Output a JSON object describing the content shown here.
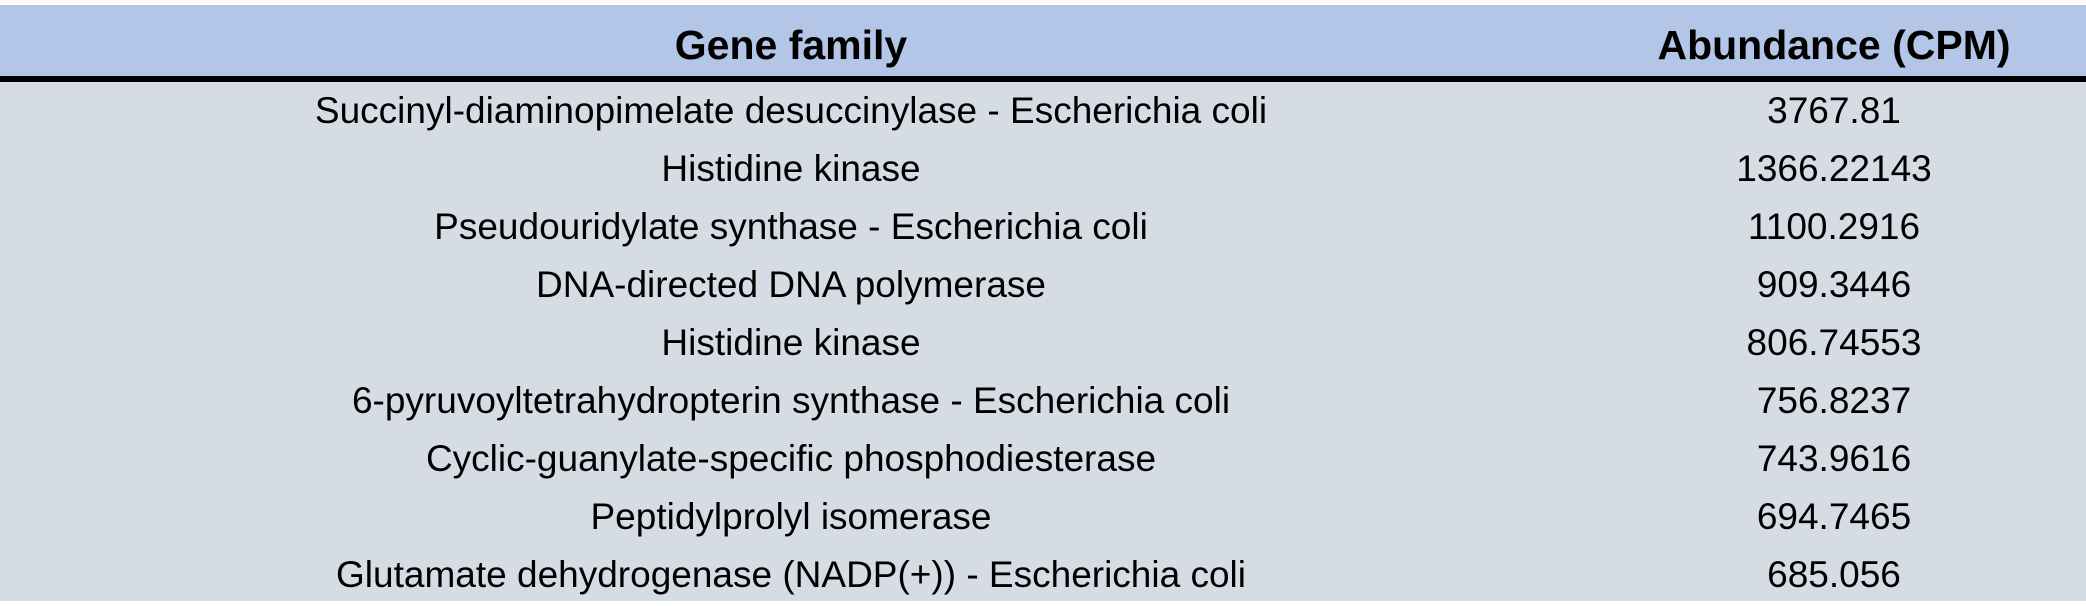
{
  "table": {
    "headers": {
      "gene_family": "Gene family",
      "abundance": "Abundance (CPM)"
    },
    "rows": [
      {
        "gene_family": "Succinyl-diaminopimelate desuccinylase - Escherichia coli",
        "abundance": "3767.81"
      },
      {
        "gene_family": "Histidine kinase",
        "abundance": "1366.22143"
      },
      {
        "gene_family": "Pseudouridylate synthase - Escherichia coli",
        "abundance": "1100.2916"
      },
      {
        "gene_family": "DNA-directed DNA polymerase",
        "abundance": "909.3446"
      },
      {
        "gene_family": "Histidine kinase",
        "abundance": "806.74553"
      },
      {
        "gene_family": "6-pyruvoyltetrahydropterin synthase - Escherichia coli",
        "abundance": "756.8237"
      },
      {
        "gene_family": "Cyclic-guanylate-specific phosphodiesterase",
        "abundance": "743.9616"
      },
      {
        "gene_family": "Peptidylprolyl isomerase",
        "abundance": "694.7465"
      },
      {
        "gene_family": "Glutamate dehydrogenase (NADP(+)) - Escherichia coli",
        "abundance": "685.056"
      }
    ]
  },
  "colors": {
    "header_bg": "#b4c6e7",
    "body_bg": "#d6dce4",
    "header_rule": "#000000"
  }
}
